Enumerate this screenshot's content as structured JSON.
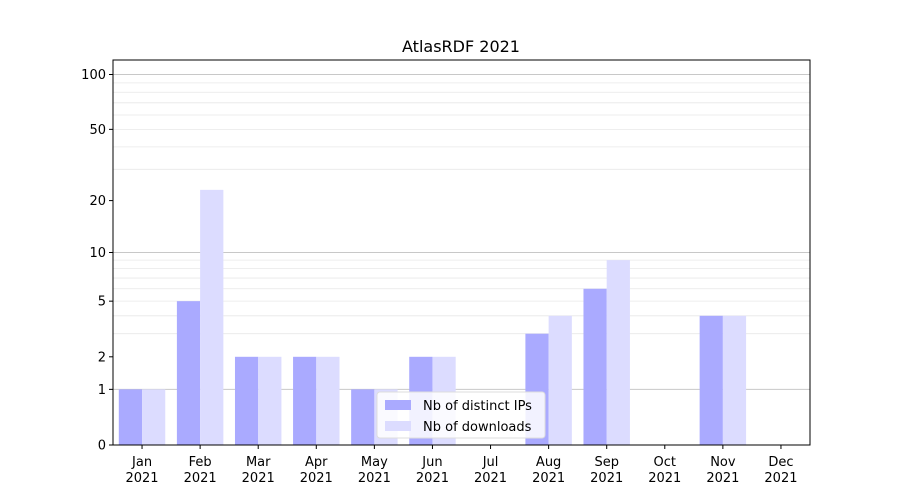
{
  "chart_data": {
    "type": "bar",
    "title": "AtlasRDF 2021",
    "xlabel": "",
    "ylabel": "",
    "y_scale": "log1p",
    "ylim": [
      0,
      120
    ],
    "y_ticks": [
      0,
      1,
      2,
      5,
      10,
      20,
      50,
      100
    ],
    "categories": [
      {
        "month": "Jan",
        "year": "2021"
      },
      {
        "month": "Feb",
        "year": "2021"
      },
      {
        "month": "Mar",
        "year": "2021"
      },
      {
        "month": "Apr",
        "year": "2021"
      },
      {
        "month": "May",
        "year": "2021"
      },
      {
        "month": "Jun",
        "year": "2021"
      },
      {
        "month": "Jul",
        "year": "2021"
      },
      {
        "month": "Aug",
        "year": "2021"
      },
      {
        "month": "Sep",
        "year": "2021"
      },
      {
        "month": "Oct",
        "year": "2021"
      },
      {
        "month": "Nov",
        "year": "2021"
      },
      {
        "month": "Dec",
        "year": "2021"
      }
    ],
    "series": [
      {
        "name": "Nb of distinct IPs",
        "color": "#aaaaff",
        "values": [
          1,
          5,
          2,
          2,
          1,
          2,
          0,
          3,
          6,
          0,
          4,
          0
        ]
      },
      {
        "name": "Nb of downloads",
        "color": "#dcdcff",
        "values": [
          1,
          23,
          2,
          2,
          1,
          2,
          0,
          4,
          9,
          0,
          4,
          0
        ]
      }
    ],
    "grid": true,
    "legend_position": "bottom-center"
  }
}
